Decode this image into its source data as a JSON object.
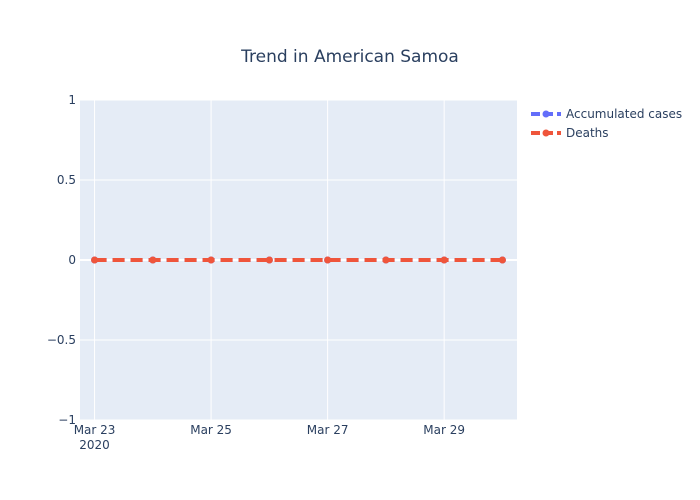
{
  "chart_data": {
    "type": "line",
    "title": "Trend in American Samoa",
    "xlabel": "",
    "ylabel": "",
    "x": [
      "2020-03-23",
      "2020-03-24",
      "2020-03-25",
      "2020-03-26",
      "2020-03-27",
      "2020-03-28",
      "2020-03-29",
      "2020-03-30"
    ],
    "xlim": [
      "2020-03-22 18:00",
      "2020-03-30 06:00"
    ],
    "x_tick_labels": [
      {
        "date": "2020-03-23",
        "label": "Mar 23",
        "sublabel": "2020"
      },
      {
        "date": "2020-03-25",
        "label": "Mar 25",
        "sublabel": ""
      },
      {
        "date": "2020-03-27",
        "label": "Mar 27",
        "sublabel": ""
      },
      {
        "date": "2020-03-29",
        "label": "Mar 29",
        "sublabel": ""
      }
    ],
    "ylim": [
      -1,
      1
    ],
    "y_ticks": [
      {
        "value": 1,
        "label": "1"
      },
      {
        "value": 0.5,
        "label": "0.5"
      },
      {
        "value": 0,
        "label": "0"
      },
      {
        "value": -0.5,
        "label": "−0.5"
      },
      {
        "value": -1,
        "label": "−1"
      }
    ],
    "grid": true,
    "legend_position": "top-right",
    "series": [
      {
        "name": "Accumulated cases",
        "color": "#636efa",
        "style": "dashed-markers",
        "values": [
          0,
          0,
          0,
          0,
          0,
          0,
          0,
          0
        ]
      },
      {
        "name": "Deaths",
        "color": "#ef553b",
        "style": "dashed-markers",
        "values": [
          0,
          0,
          0,
          0,
          0,
          0,
          0,
          0
        ]
      }
    ],
    "plot_background": "#e5ecf6",
    "gridline_color": "#ffffff"
  }
}
